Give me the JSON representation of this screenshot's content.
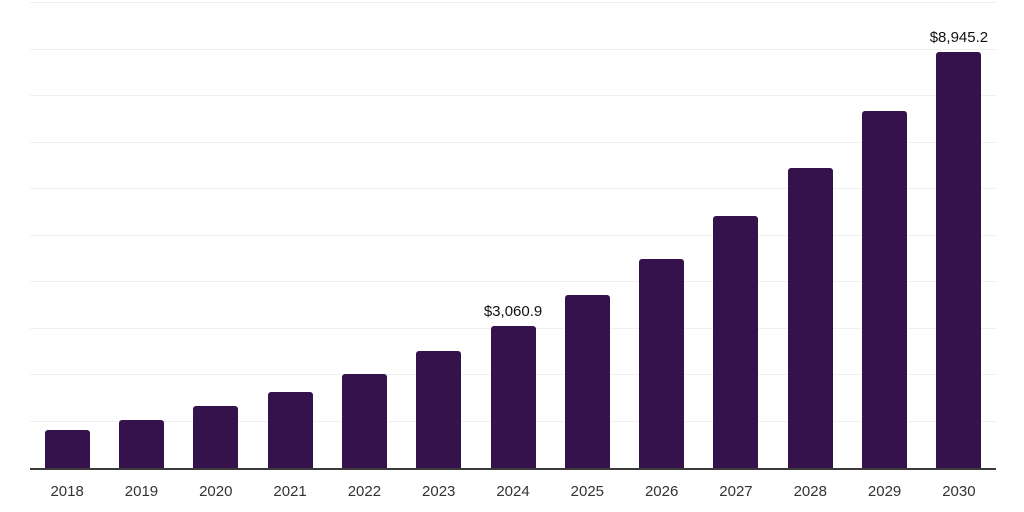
{
  "chart_data": {
    "type": "bar",
    "title": "",
    "xlabel": "",
    "ylabel": "",
    "categories": [
      "2018",
      "2019",
      "2020",
      "2021",
      "2022",
      "2023",
      "2024",
      "2025",
      "2026",
      "2027",
      "2028",
      "2029",
      "2030"
    ],
    "values": [
      810,
      1040,
      1330,
      1640,
      2030,
      2510,
      3060.9,
      3720,
      4490,
      5410,
      6460,
      7670,
      8945.2
    ],
    "data_labels": [
      null,
      null,
      null,
      null,
      null,
      null,
      "$3,060.9",
      null,
      null,
      null,
      null,
      null,
      "$8,945.2"
    ],
    "ylim": [
      0,
      10000
    ],
    "grid_step": 1000,
    "grid": true,
    "legend": false,
    "colors": {
      "bar": "#35124B",
      "gridline": "#f0f0f0",
      "axis_line": "#3b3b3b",
      "tick_label": "#333333",
      "data_label": "#111111",
      "background": "#ffffff"
    }
  }
}
